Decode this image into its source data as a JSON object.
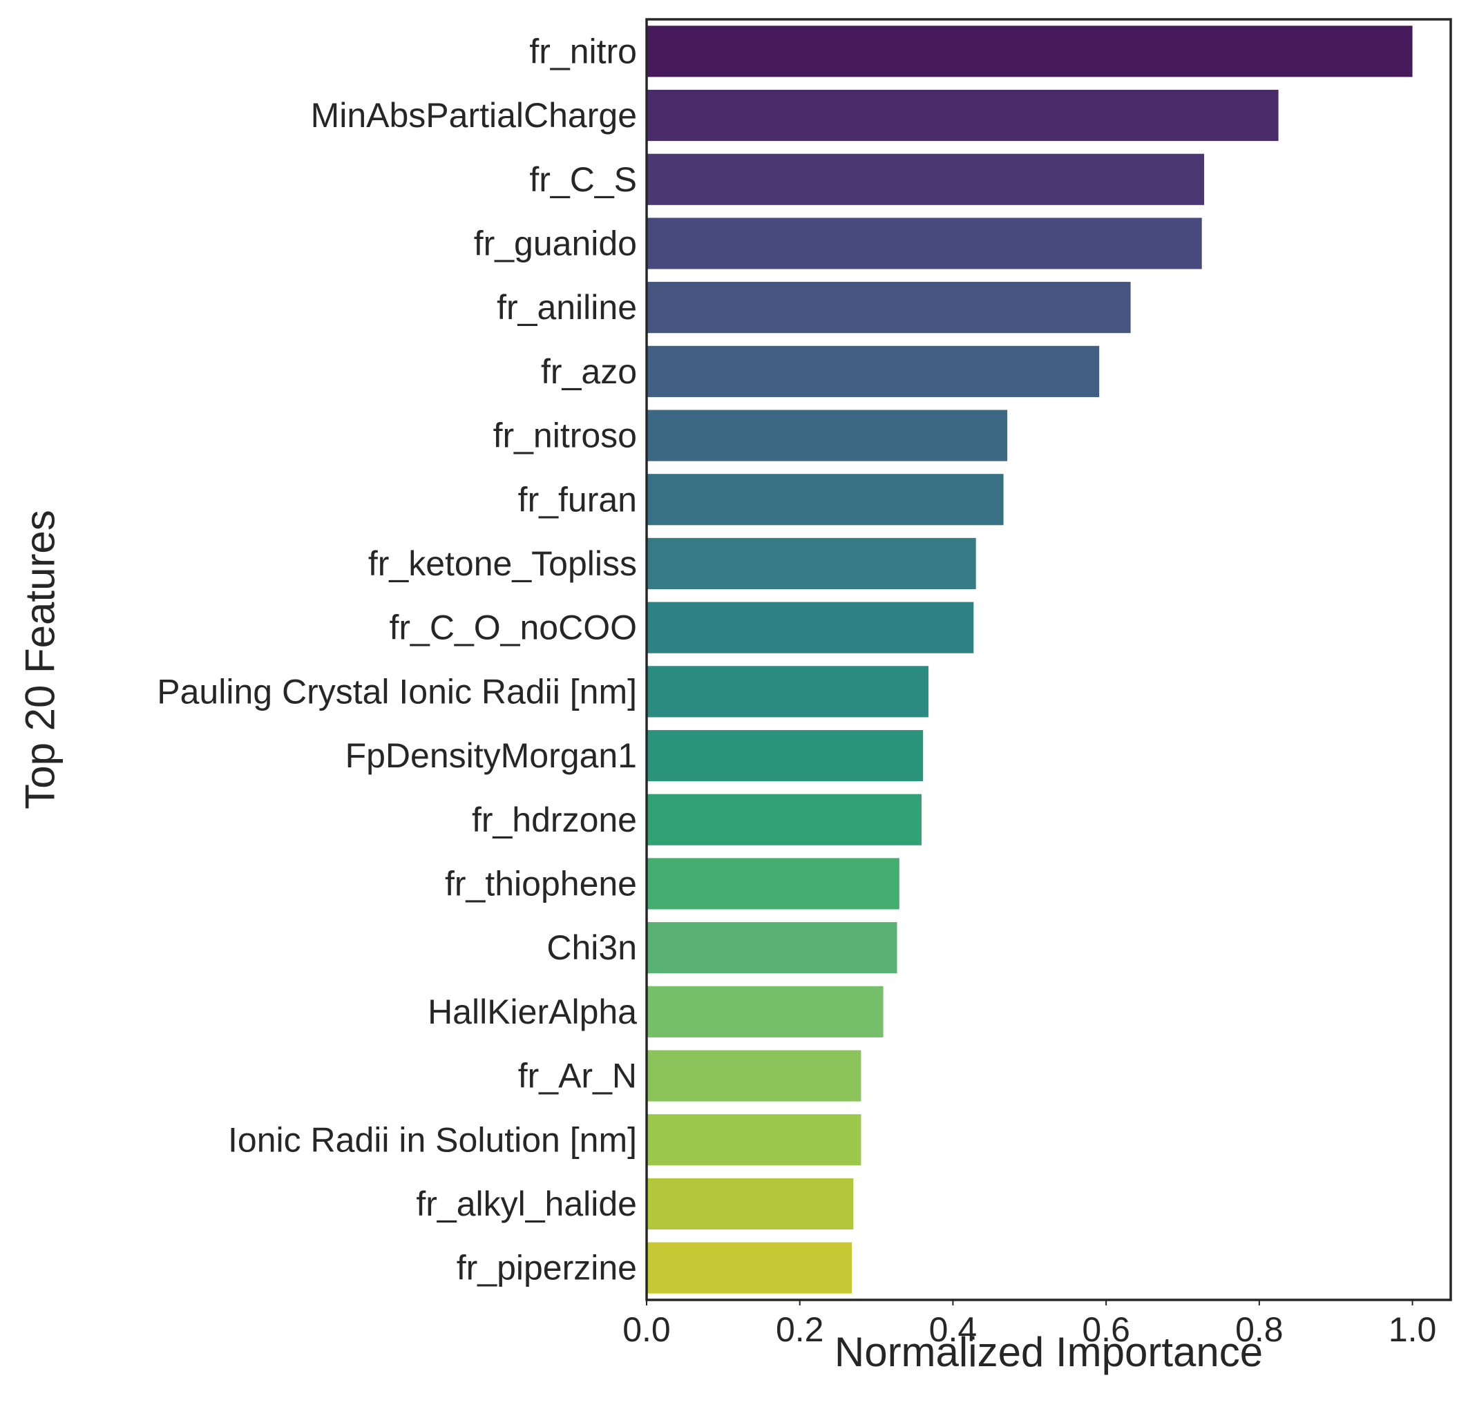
{
  "chart_data": {
    "type": "bar",
    "orientation": "horizontal",
    "title": "",
    "xlabel": "Normalized Importance",
    "ylabel": "Top 20 Features",
    "xlim": [
      0,
      1.05
    ],
    "xticks": [
      "0.0",
      "0.2",
      "0.4",
      "0.6",
      "0.8",
      "1.0"
    ],
    "grid": false,
    "categories": [
      "fr_nitro",
      "MinAbsPartialCharge",
      "fr_C_S",
      "fr_guanido",
      "fr_aniline",
      "fr_azo",
      "fr_nitroso",
      "fr_furan",
      "fr_ketone_Topliss",
      "fr_C_O_noCOO",
      "Pauling Crystal Ionic Radii [nm]",
      "FpDensityMorgan1",
      "fr_hdrzone",
      "fr_thiophene",
      "Chi3n",
      "HallKierAlpha",
      "fr_Ar_N",
      "Ionic Radii in Solution [nm]",
      "fr_alkyl_halide",
      "fr_piperzine"
    ],
    "values": [
      1.0,
      0.825,
      0.728,
      0.725,
      0.632,
      0.591,
      0.471,
      0.466,
      0.43,
      0.427,
      0.368,
      0.361,
      0.359,
      0.33,
      0.327,
      0.309,
      0.28,
      0.28,
      0.27,
      0.268
    ],
    "colors": [
      "#471b5b",
      "#4a2c6b",
      "#4b3873",
      "#484a7d",
      "#45557f",
      "#415f82",
      "#3d6884",
      "#387185",
      "#357a84",
      "#308384",
      "#2c8b80",
      "#2c947c",
      "#33a176",
      "#45ad70",
      "#59b273",
      "#74bf67",
      "#8ac45b",
      "#9bc74c",
      "#b2c73c",
      "#c6c933"
    ]
  }
}
